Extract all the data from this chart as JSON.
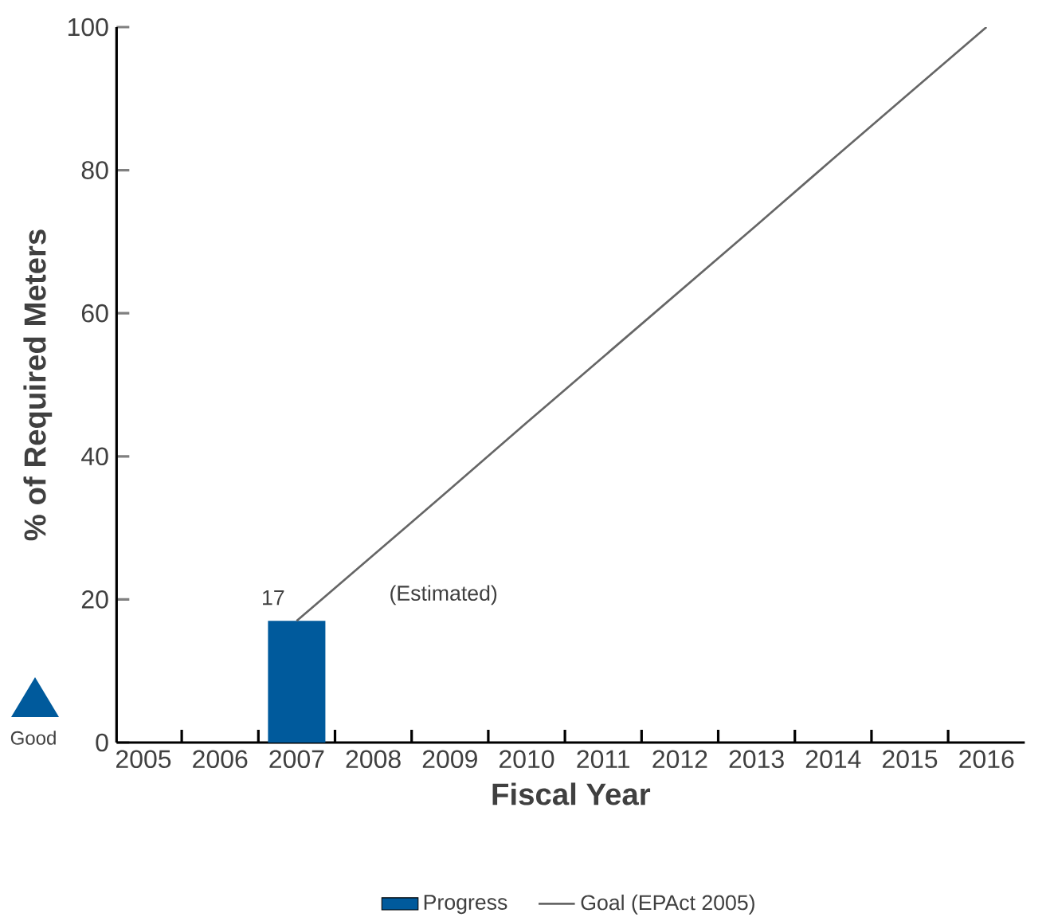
{
  "chart_data": {
    "type": "bar",
    "xlabel": "Fiscal Year",
    "ylabel": "% of Required Meters",
    "categories": [
      "2005",
      "2006",
      "2007",
      "2008",
      "2009",
      "2010",
      "2011",
      "2012",
      "2013",
      "2014",
      "2015",
      "2016"
    ],
    "series": [
      {
        "name": "Progress",
        "color": "#005a9c",
        "values": [
          null,
          null,
          17,
          null,
          null,
          null,
          null,
          null,
          null,
          null,
          null,
          null
        ],
        "value_labels": [
          null,
          null,
          "17",
          null,
          null,
          null,
          null,
          null,
          null,
          null,
          null,
          null
        ]
      },
      {
        "name": "Goal (EPAct 2005)",
        "type": "line",
        "color": "#666666",
        "values": [
          null,
          null,
          17,
          26.2,
          35.4,
          44.7,
          53.9,
          63.1,
          72.3,
          81.6,
          90.8,
          100
        ]
      }
    ],
    "ylim": [
      0,
      100
    ],
    "yticks": [
      0,
      20,
      40,
      60,
      80,
      100
    ],
    "grid": false,
    "legend": "bottom",
    "annotations": [
      "(Estimated)",
      "Good"
    ]
  }
}
